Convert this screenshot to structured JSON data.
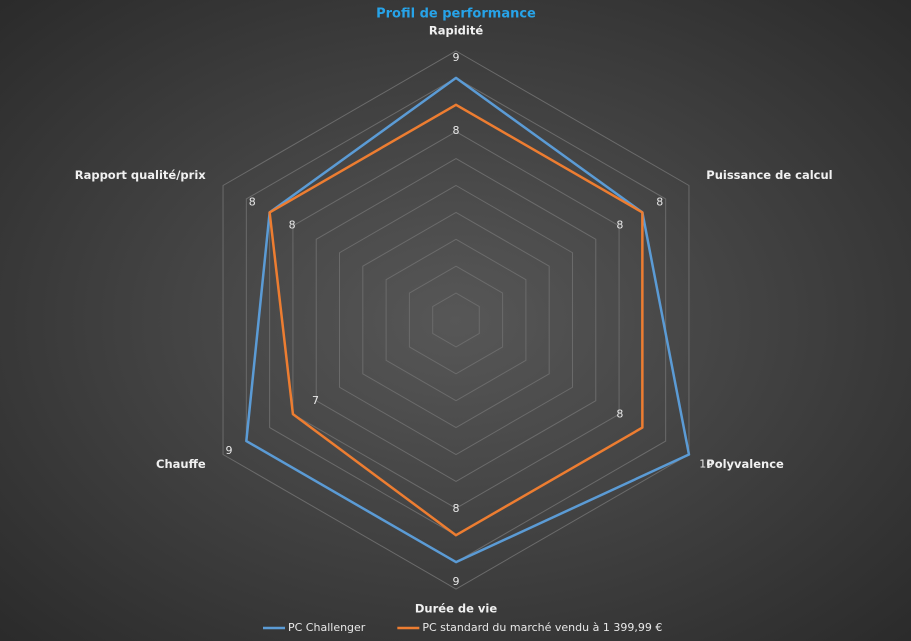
{
  "chart_data": {
    "type": "radar",
    "title": "Profil de performance",
    "categories": [
      "Rapidité",
      "Puissance de calcul",
      "Polyvalence",
      "Durée de vie",
      "Chauffe",
      "Rapport qualité/prix"
    ],
    "series": [
      {
        "name": "PC Challenger",
        "color": "#5b9bd5",
        "values": [
          9,
          8,
          10,
          9,
          9,
          8
        ]
      },
      {
        "name": "PC standard du marché vendu à 1 399,99 €",
        "color": "#ed7d31",
        "values": [
          8,
          8,
          8,
          8,
          7,
          8
        ]
      }
    ],
    "ylim": [
      0,
      10
    ],
    "yticks": [
      0,
      1,
      2,
      3,
      4,
      5,
      6,
      7,
      8,
      9,
      10
    ],
    "grid": true
  }
}
